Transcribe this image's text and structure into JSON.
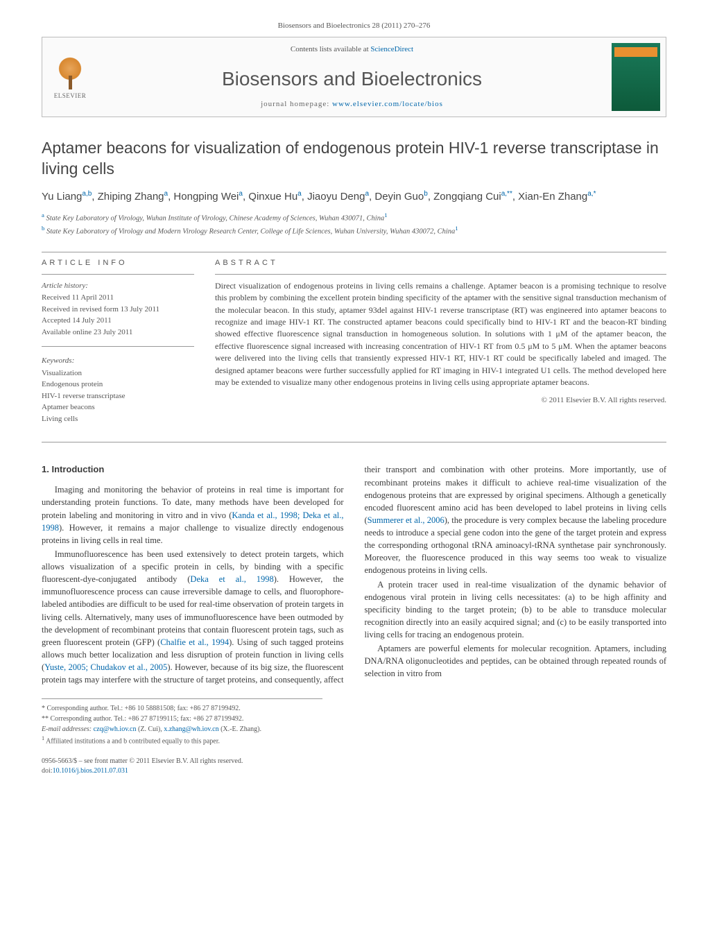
{
  "top_citation": "Biosensors and Bioelectronics 28 (2011) 270–276",
  "header": {
    "contents_prefix": "Contents lists available at ",
    "contents_link": "ScienceDirect",
    "journal_name": "Biosensors and Bioelectronics",
    "homepage_prefix": "journal homepage: ",
    "homepage_url": "www.elsevier.com/locate/bios",
    "publisher": "ELSEVIER"
  },
  "title": "Aptamer beacons for visualization of endogenous protein HIV-1 reverse transcriptase in living cells",
  "authors_html": "Yu Liang<sup>a,b</sup>, Zhiping Zhang<sup>a</sup>, Hongping Wei<sup>a</sup>, Qinxue Hu<sup>a</sup>, Jiaoyu Deng<sup>a</sup>, Deyin Guo<sup>b</sup>, Zongqiang Cui<sup>a,**</sup>, Xian-En Zhang<sup>a,*</sup>",
  "affiliations": [
    {
      "sup": "a",
      "text": "State Key Laboratory of Virology, Wuhan Institute of Virology, Chinese Academy of Sciences, Wuhan 430071, China",
      "note_sup": "1"
    },
    {
      "sup": "b",
      "text": "State Key Laboratory of Virology and Modern Virology Research Center, College of Life Sciences, Wuhan University, Wuhan 430072, China",
      "note_sup": "1"
    }
  ],
  "article_info_label": "ARTICLE INFO",
  "abstract_label": "ABSTRACT",
  "history_heading": "Article history:",
  "history": [
    "Received 11 April 2011",
    "Received in revised form 13 July 2011",
    "Accepted 14 July 2011",
    "Available online 23 July 2011"
  ],
  "keywords_heading": "Keywords:",
  "keywords": [
    "Visualization",
    "Endogenous protein",
    "HIV-1 reverse transcriptase",
    "Aptamer beacons",
    "Living cells"
  ],
  "abstract": "Direct visualization of endogenous proteins in living cells remains a challenge. Aptamer beacon is a promising technique to resolve this problem by combining the excellent protein binding specificity of the aptamer with the sensitive signal transduction mechanism of the molecular beacon. In this study, aptamer 93del against HIV-1 reverse transcriptase (RT) was engineered into aptamer beacons to recognize and image HIV-1 RT. The constructed aptamer beacons could specifically bind to HIV-1 RT and the beacon-RT binding showed effective fluorescence signal transduction in homogeneous solution. In solutions with 1 μM of the aptamer beacon, the effective fluorescence signal increased with increasing concentration of HIV-1 RT from 0.5 μM to 5 μM. When the aptamer beacons were delivered into the living cells that transiently expressed HIV-1 RT, HIV-1 RT could be specifically labeled and imaged. The designed aptamer beacons were further successfully applied for RT imaging in HIV-1 integrated U1 cells. The method developed here may be extended to visualize many other endogenous proteins in living cells using appropriate aptamer beacons.",
  "copyright": "© 2011 Elsevier B.V. All rights reserved.",
  "intro_heading": "1. Introduction",
  "body_paragraphs": [
    "Imaging and monitoring the behavior of proteins in real time is important for understanding protein functions. To date, many methods have been developed for protein labeling and monitoring in vitro and in vivo (<span class='cite'>Kanda et al., 1998; Deka et al., 1998</span>). However, it remains a major challenge to visualize directly endogenous proteins in living cells in real time.",
    "Immunofluorescence has been used extensively to detect protein targets, which allows visualization of a specific protein in cells, by binding with a specific fluorescent-dye-conjugated antibody (<span class='cite'>Deka et al., 1998</span>). However, the immunofluorescence process can cause irreversible damage to cells, and fluorophore-labeled antibodies are difficult to be used for real-time observation of protein targets in living cells. Alternatively, many uses of immunofluorescence have been outmoded by the development of recombinant proteins that contain fluorescent protein tags, such as green fluorescent protein (GFP) (<span class='cite'>Chalfie et al., 1994</span>). Using of such tagged proteins allows much better localization and less disruption of protein function in living cells (<span class='cite'>Yuste, 2005; Chudakov et al., 2005</span>). However, because of its big size, the fluorescent protein tags may interfere with the structure of target proteins, and consequently, affect their transport and combination with other proteins. More importantly, use of recombinant proteins makes it difficult to achieve real-time visualization of the endogenous proteins that are expressed by original specimens. Although a genetically encoded fluorescent amino acid has been developed to label proteins in living cells (<span class='cite'>Summerer et al., 2006</span>), the procedure is very complex because the labeling procedure needs to introduce a special gene codon into the gene of the target protein and express the corresponding orthogonal tRNA aminoacyl-tRNA synthetase pair synchronously. Moreover, the fluorescence produced in this way seems too weak to visualize endogenous proteins in living cells.",
    "A protein tracer used in real-time visualization of the dynamic behavior of endogenous viral protein in living cells necessitates: (a) to be high affinity and specificity binding to the target protein; (b) to be able to transduce molecular recognition directly into an easily acquired signal; and (c) to be easily transported into living cells for tracing an endogenous protein.",
    "Aptamers are powerful elements for molecular recognition. Aptamers, including DNA/RNA oligonucleotides and peptides, can be obtained through repeated rounds of selection in vitro from"
  ],
  "footnotes": {
    "star": "Corresponding author. Tel.: +86 10 58881508; fax: +86 27 87199492.",
    "dstar": "Corresponding author. Tel.: +86 27 87199115; fax: +86 27 87199492.",
    "email_label": "E-mail addresses:",
    "emails": "czq@wh.iov.cn (Z. Cui), x.zhang@wh.iov.cn (X.-E. Zhang).",
    "note1": "Affiliated institutions a and b contributed equally to this paper."
  },
  "footer": {
    "line1": "0956-5663/$ – see front matter © 2011 Elsevier B.V. All rights reserved.",
    "doi_prefix": "doi:",
    "doi": "10.1016/j.bios.2011.07.031"
  },
  "colors": {
    "link": "#0066aa",
    "text": "#3a3a3a",
    "muted": "#555555",
    "rule": "#999999",
    "cover_green": "#1a7a5a",
    "cover_orange": "#e89030",
    "elsevier_orange": "#d88830"
  }
}
